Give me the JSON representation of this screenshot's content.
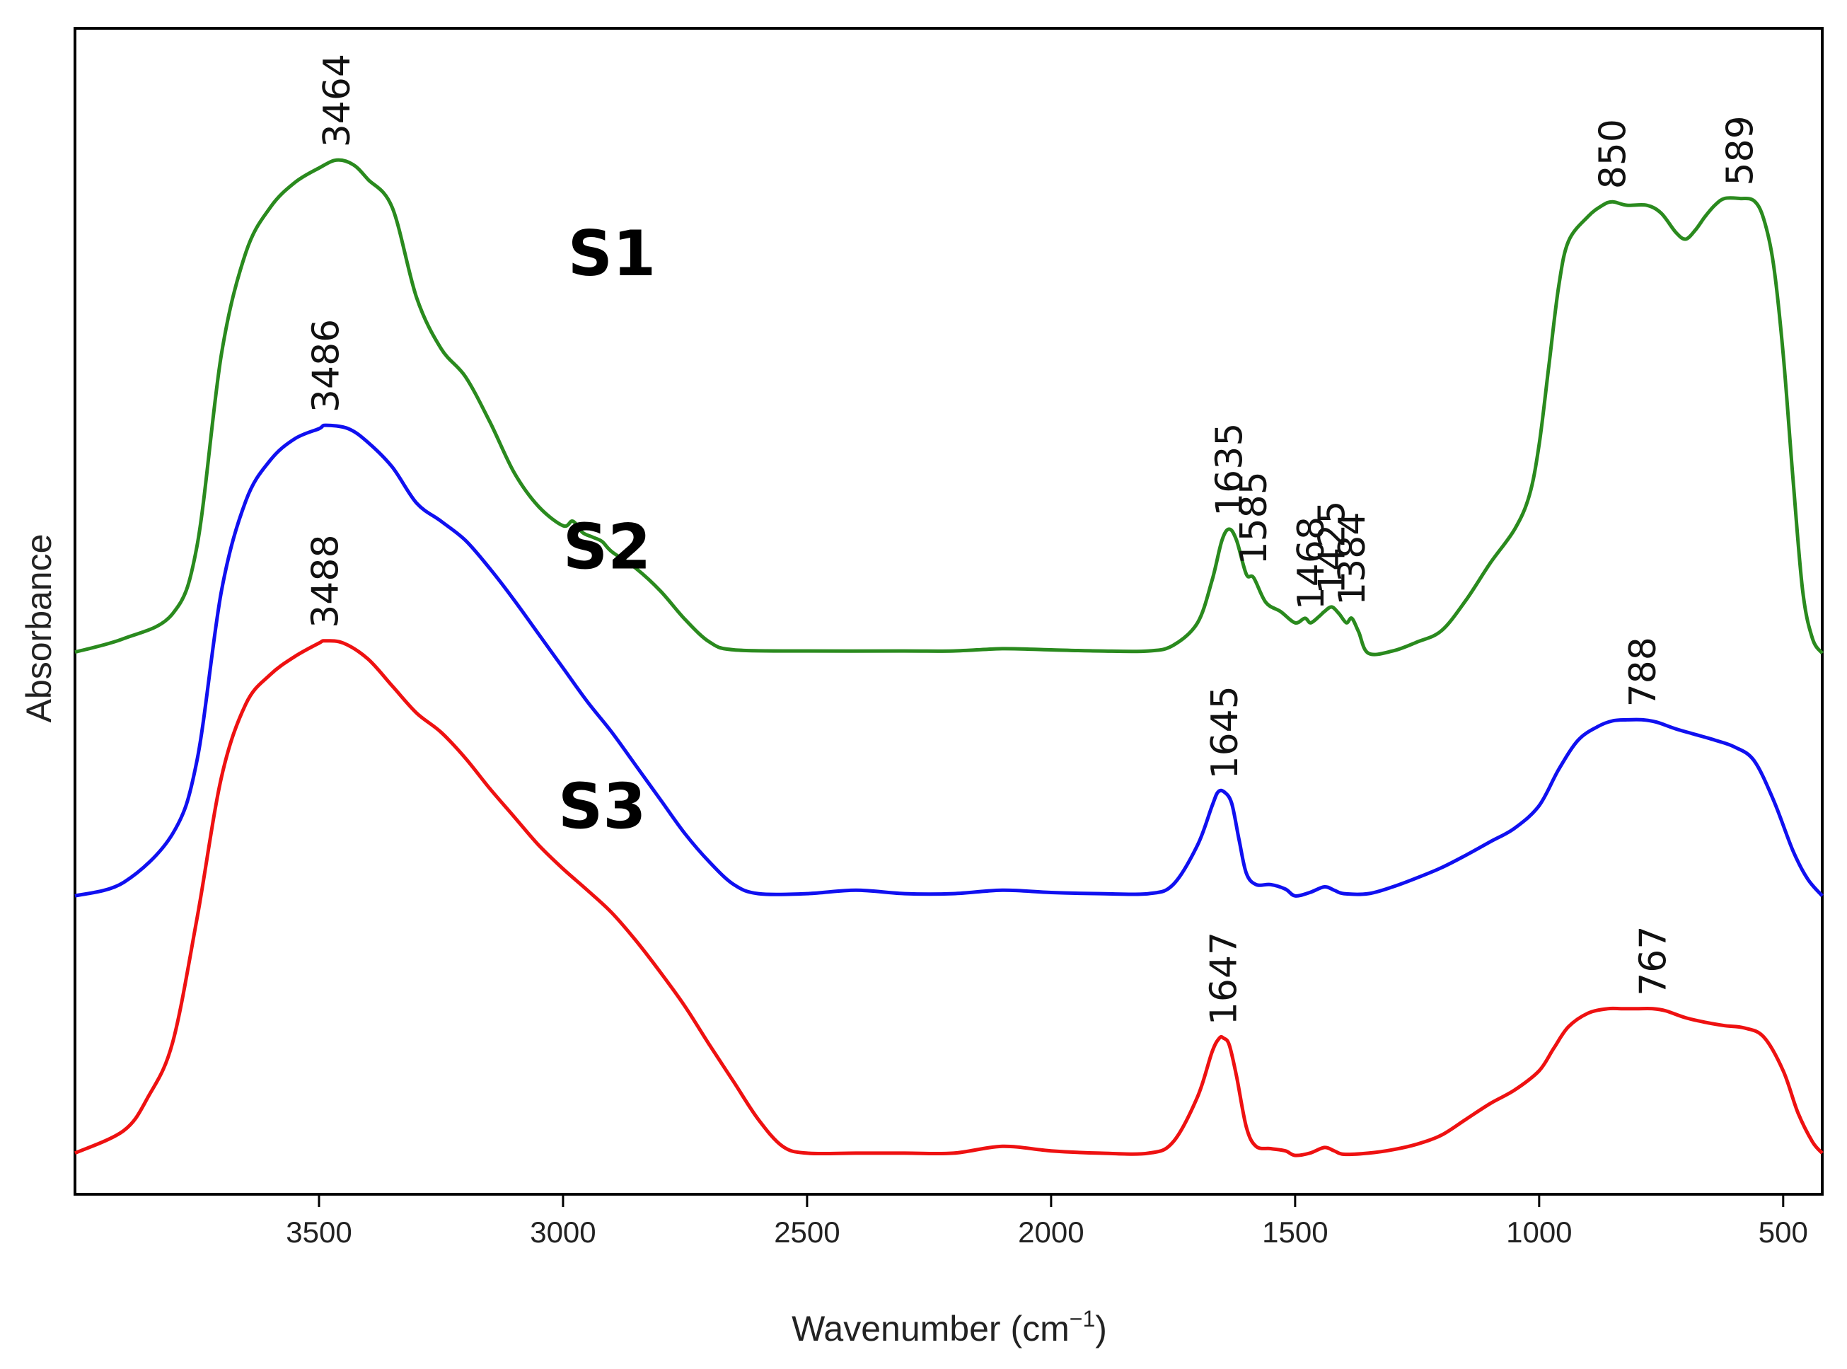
{
  "chart_data": {
    "type": "line",
    "title": "",
    "xlabel": "Wavenumber (cm",
    "xlabel_sup": "−1",
    "xlabel_close": ")",
    "ylabel": "Absorbance",
    "xlim": [
      4000,
      420
    ],
    "ylim": [
      0,
      10
    ],
    "x_reversed": true,
    "x_ticks": [
      3500,
      3000,
      2500,
      2000,
      1500,
      1000,
      500
    ],
    "y_ticks": [],
    "grid": false,
    "legend": "none",
    "series": [
      {
        "name": "S1",
        "color": "#2a8a1e",
        "points": [
          [
            4000,
            4.66
          ],
          [
            3900,
            4.78
          ],
          [
            3800,
            5.0
          ],
          [
            3750,
            5.6
          ],
          [
            3700,
            7.3
          ],
          [
            3650,
            8.2
          ],
          [
            3600,
            8.6
          ],
          [
            3550,
            8.82
          ],
          [
            3500,
            8.95
          ],
          [
            3464,
            9.02
          ],
          [
            3430,
            8.98
          ],
          [
            3400,
            8.85
          ],
          [
            3350,
            8.6
          ],
          [
            3300,
            7.8
          ],
          [
            3250,
            7.35
          ],
          [
            3200,
            7.1
          ],
          [
            3150,
            6.7
          ],
          [
            3100,
            6.25
          ],
          [
            3050,
            5.95
          ],
          [
            3000,
            5.78
          ],
          [
            2980,
            5.82
          ],
          [
            2960,
            5.72
          ],
          [
            2940,
            5.68
          ],
          [
            2920,
            5.64
          ],
          [
            2900,
            5.55
          ],
          [
            2850,
            5.4
          ],
          [
            2800,
            5.2
          ],
          [
            2750,
            4.95
          ],
          [
            2700,
            4.75
          ],
          [
            2650,
            4.68
          ],
          [
            2500,
            4.67
          ],
          [
            2300,
            4.67
          ],
          [
            2200,
            4.67
          ],
          [
            2100,
            4.69
          ],
          [
            2000,
            4.68
          ],
          [
            1900,
            4.67
          ],
          [
            1800,
            4.67
          ],
          [
            1750,
            4.72
          ],
          [
            1700,
            4.92
          ],
          [
            1670,
            5.3
          ],
          [
            1650,
            5.65
          ],
          [
            1635,
            5.75
          ],
          [
            1620,
            5.65
          ],
          [
            1600,
            5.35
          ],
          [
            1585,
            5.32
          ],
          [
            1560,
            5.1
          ],
          [
            1530,
            5.02
          ],
          [
            1500,
            4.92
          ],
          [
            1480,
            4.96
          ],
          [
            1468,
            4.92
          ],
          [
            1450,
            4.98
          ],
          [
            1440,
            5.02
          ],
          [
            1425,
            5.06
          ],
          [
            1410,
            5.0
          ],
          [
            1395,
            4.92
          ],
          [
            1384,
            4.96
          ],
          [
            1370,
            4.84
          ],
          [
            1350,
            4.65
          ],
          [
            1300,
            4.67
          ],
          [
            1250,
            4.75
          ],
          [
            1200,
            4.85
          ],
          [
            1150,
            5.12
          ],
          [
            1100,
            5.45
          ],
          [
            1050,
            5.75
          ],
          [
            1020,
            6.05
          ],
          [
            1000,
            6.5
          ],
          [
            980,
            7.2
          ],
          [
            960,
            7.9
          ],
          [
            940,
            8.3
          ],
          [
            900,
            8.52
          ],
          [
            870,
            8.62
          ],
          [
            850,
            8.65
          ],
          [
            820,
            8.62
          ],
          [
            780,
            8.62
          ],
          [
            750,
            8.55
          ],
          [
            720,
            8.38
          ],
          [
            700,
            8.32
          ],
          [
            680,
            8.4
          ],
          [
            660,
            8.52
          ],
          [
            640,
            8.62
          ],
          [
            620,
            8.68
          ],
          [
            589,
            8.68
          ],
          [
            560,
            8.66
          ],
          [
            540,
            8.5
          ],
          [
            520,
            8.1
          ],
          [
            500,
            7.3
          ],
          [
            480,
            6.2
          ],
          [
            460,
            5.2
          ],
          [
            440,
            4.78
          ],
          [
            420,
            4.65
          ]
        ]
      },
      {
        "name": "S2",
        "color": "#1010f0",
        "points": [
          [
            4000,
            2.5
          ],
          [
            3900,
            2.62
          ],
          [
            3800,
            3.05
          ],
          [
            3750,
            3.7
          ],
          [
            3700,
            5.2
          ],
          [
            3650,
            6.0
          ],
          [
            3600,
            6.36
          ],
          [
            3550,
            6.55
          ],
          [
            3500,
            6.64
          ],
          [
            3486,
            6.67
          ],
          [
            3440,
            6.64
          ],
          [
            3400,
            6.52
          ],
          [
            3350,
            6.3
          ],
          [
            3300,
            5.98
          ],
          [
            3250,
            5.82
          ],
          [
            3200,
            5.65
          ],
          [
            3150,
            5.4
          ],
          [
            3100,
            5.12
          ],
          [
            3050,
            4.82
          ],
          [
            3000,
            4.52
          ],
          [
            2950,
            4.22
          ],
          [
            2900,
            3.95
          ],
          [
            2850,
            3.65
          ],
          [
            2800,
            3.35
          ],
          [
            2750,
            3.05
          ],
          [
            2700,
            2.8
          ],
          [
            2650,
            2.6
          ],
          [
            2600,
            2.52
          ],
          [
            2500,
            2.52
          ],
          [
            2400,
            2.55
          ],
          [
            2300,
            2.52
          ],
          [
            2200,
            2.52
          ],
          [
            2100,
            2.55
          ],
          [
            2000,
            2.53
          ],
          [
            1900,
            2.52
          ],
          [
            1800,
            2.52
          ],
          [
            1750,
            2.6
          ],
          [
            1700,
            2.95
          ],
          [
            1670,
            3.3
          ],
          [
            1658,
            3.42
          ],
          [
            1645,
            3.42
          ],
          [
            1630,
            3.32
          ],
          [
            1615,
            3.0
          ],
          [
            1600,
            2.7
          ],
          [
            1580,
            2.6
          ],
          [
            1550,
            2.6
          ],
          [
            1520,
            2.56
          ],
          [
            1500,
            2.5
          ],
          [
            1470,
            2.53
          ],
          [
            1440,
            2.58
          ],
          [
            1420,
            2.55
          ],
          [
            1400,
            2.52
          ],
          [
            1350,
            2.52
          ],
          [
            1300,
            2.58
          ],
          [
            1250,
            2.66
          ],
          [
            1200,
            2.75
          ],
          [
            1150,
            2.86
          ],
          [
            1100,
            2.98
          ],
          [
            1050,
            3.1
          ],
          [
            1000,
            3.3
          ],
          [
            960,
            3.62
          ],
          [
            920,
            3.88
          ],
          [
            880,
            4.0
          ],
          [
            850,
            4.05
          ],
          [
            820,
            4.06
          ],
          [
            788,
            4.06
          ],
          [
            760,
            4.04
          ],
          [
            720,
            3.98
          ],
          [
            680,
            3.93
          ],
          [
            640,
            3.88
          ],
          [
            600,
            3.82
          ],
          [
            560,
            3.7
          ],
          [
            520,
            3.35
          ],
          [
            480,
            2.9
          ],
          [
            450,
            2.65
          ],
          [
            420,
            2.5
          ]
        ]
      },
      {
        "name": "S3",
        "color": "#ee1111",
        "points": [
          [
            4000,
            0.22
          ],
          [
            3900,
            0.42
          ],
          [
            3850,
            0.72
          ],
          [
            3800,
            1.2
          ],
          [
            3750,
            2.3
          ],
          [
            3700,
            3.55
          ],
          [
            3650,
            4.2
          ],
          [
            3600,
            4.46
          ],
          [
            3550,
            4.62
          ],
          [
            3500,
            4.74
          ],
          [
            3488,
            4.76
          ],
          [
            3450,
            4.74
          ],
          [
            3400,
            4.6
          ],
          [
            3350,
            4.36
          ],
          [
            3300,
            4.12
          ],
          [
            3250,
            3.95
          ],
          [
            3200,
            3.72
          ],
          [
            3150,
            3.45
          ],
          [
            3100,
            3.2
          ],
          [
            3050,
            2.95
          ],
          [
            3000,
            2.74
          ],
          [
            2950,
            2.55
          ],
          [
            2900,
            2.35
          ],
          [
            2850,
            2.1
          ],
          [
            2800,
            1.82
          ],
          [
            2750,
            1.52
          ],
          [
            2700,
            1.18
          ],
          [
            2650,
            0.85
          ],
          [
            2600,
            0.52
          ],
          [
            2550,
            0.28
          ],
          [
            2500,
            0.22
          ],
          [
            2400,
            0.22
          ],
          [
            2300,
            0.22
          ],
          [
            2200,
            0.22
          ],
          [
            2100,
            0.28
          ],
          [
            2000,
            0.24
          ],
          [
            1900,
            0.22
          ],
          [
            1800,
            0.22
          ],
          [
            1750,
            0.32
          ],
          [
            1700,
            0.72
          ],
          [
            1670,
            1.12
          ],
          [
            1655,
            1.24
          ],
          [
            1647,
            1.24
          ],
          [
            1635,
            1.18
          ],
          [
            1620,
            0.9
          ],
          [
            1600,
            0.45
          ],
          [
            1580,
            0.28
          ],
          [
            1550,
            0.26
          ],
          [
            1520,
            0.24
          ],
          [
            1500,
            0.2
          ],
          [
            1470,
            0.22
          ],
          [
            1440,
            0.27
          ],
          [
            1420,
            0.24
          ],
          [
            1400,
            0.21
          ],
          [
            1350,
            0.22
          ],
          [
            1300,
            0.25
          ],
          [
            1250,
            0.3
          ],
          [
            1200,
            0.38
          ],
          [
            1150,
            0.52
          ],
          [
            1100,
            0.66
          ],
          [
            1050,
            0.78
          ],
          [
            1000,
            0.95
          ],
          [
            970,
            1.15
          ],
          [
            940,
            1.34
          ],
          [
            900,
            1.46
          ],
          [
            860,
            1.5
          ],
          [
            830,
            1.5
          ],
          [
            800,
            1.5
          ],
          [
            767,
            1.5
          ],
          [
            740,
            1.48
          ],
          [
            700,
            1.42
          ],
          [
            660,
            1.38
          ],
          [
            620,
            1.35
          ],
          [
            580,
            1.33
          ],
          [
            540,
            1.25
          ],
          [
            500,
            0.95
          ],
          [
            470,
            0.58
          ],
          [
            440,
            0.32
          ],
          [
            420,
            0.22
          ]
        ]
      }
    ],
    "series_labels": [
      {
        "text": "S1",
        "x": 2900,
        "y": 8.0
      },
      {
        "text": "S2",
        "x": 2910,
        "y": 5.4
      },
      {
        "text": "S3",
        "x": 2920,
        "y": 3.1
      }
    ],
    "annotations": [
      {
        "text": "3464",
        "series": "S1",
        "x": 3464
      },
      {
        "text": "850",
        "series": "S1",
        "x": 850
      },
      {
        "text": "589",
        "series": "S1",
        "x": 589
      },
      {
        "text": "1635",
        "series": "S1",
        "x": 1635
      },
      {
        "text": "1585",
        "series": "S1",
        "x": 1585
      },
      {
        "text": "1468",
        "series": "S1",
        "x": 1468
      },
      {
        "text": "1425",
        "series": "S1",
        "x": 1425
      },
      {
        "text": "1384",
        "series": "S1",
        "x": 1384
      },
      {
        "text": "3486",
        "series": "S2",
        "x": 3486
      },
      {
        "text": "1645",
        "series": "S2",
        "x": 1645
      },
      {
        "text": "788",
        "series": "S2",
        "x": 788
      },
      {
        "text": "3488",
        "series": "S3",
        "x": 3488
      },
      {
        "text": "1647",
        "series": "S3",
        "x": 1647
      },
      {
        "text": "767",
        "series": "S3",
        "x": 767
      }
    ]
  }
}
